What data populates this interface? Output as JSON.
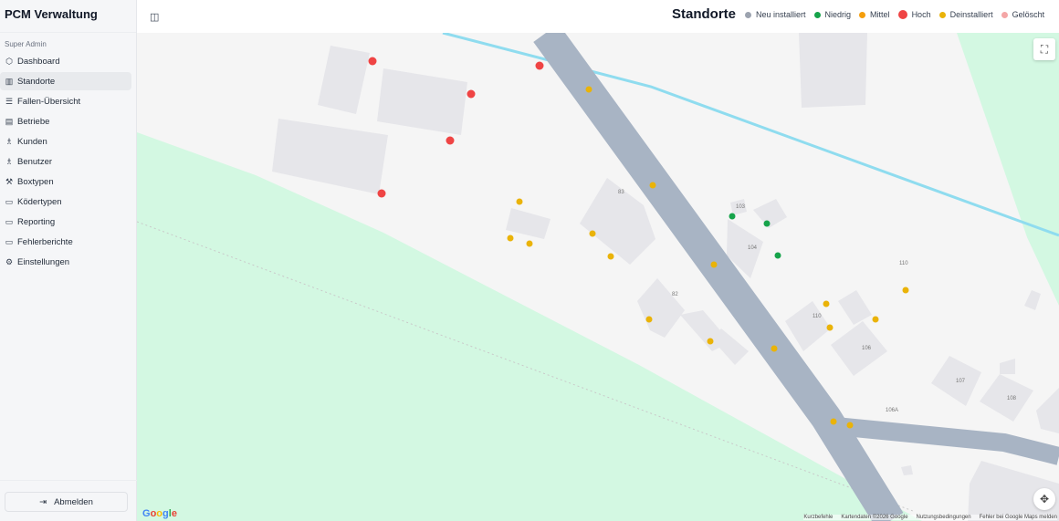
{
  "sidebar": {
    "brand": "PCM Verwaltung",
    "group": "Super Admin",
    "items": [
      {
        "label": "Dashboard",
        "icon": "shield-icon"
      },
      {
        "label": "Standorte",
        "icon": "map-icon"
      },
      {
        "label": "Fallen-Übersicht",
        "icon": "list-icon"
      },
      {
        "label": "Betriebe",
        "icon": "building-icon"
      },
      {
        "label": "Kunden",
        "icon": "users-icon"
      },
      {
        "label": "Benutzer",
        "icon": "users-icon"
      },
      {
        "label": "Boxtypen",
        "icon": "wrench-icon"
      },
      {
        "label": "Ködertypen",
        "icon": "file-icon"
      },
      {
        "label": "Reporting",
        "icon": "file-icon"
      },
      {
        "label": "Fehlerberichte",
        "icon": "file-icon"
      },
      {
        "label": "Einstellungen",
        "icon": "gear-icon"
      }
    ],
    "active": "Standorte",
    "logout": "Abmelden"
  },
  "header": {
    "title": "Standorte",
    "legend": [
      {
        "label": "Neu installiert",
        "color": "#9ca3af"
      },
      {
        "label": "Niedrig",
        "color": "#16a34a"
      },
      {
        "label": "Mittel",
        "color": "#f59e0b"
      },
      {
        "label": "Hoch",
        "color": "#ef4444"
      },
      {
        "label": "Deinstalliert",
        "color": "#eab308"
      },
      {
        "label": "Gelöscht",
        "color": "#f4a6a6"
      }
    ]
  },
  "map": {
    "house_numbers": [
      "83",
      "103",
      "104",
      "82",
      "110",
      "106",
      "107",
      "108",
      "106A",
      "110"
    ],
    "attribution": [
      "Kurzbefehle",
      "Kartendaten ©2026 Google",
      "Nutzungsbedingungen",
      "Fehler bei Google Maps melden"
    ],
    "logo": "Google"
  }
}
